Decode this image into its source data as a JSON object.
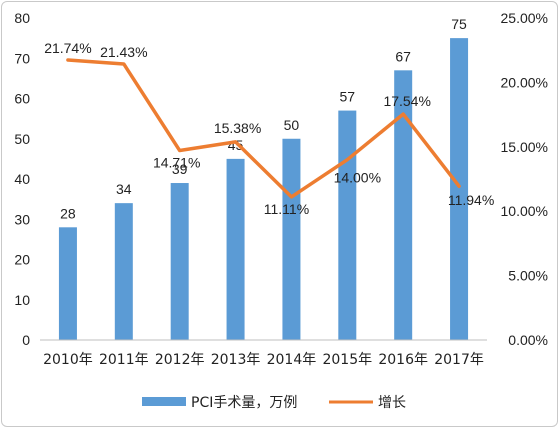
{
  "chart_data": {
    "type": "bar+line",
    "categories": [
      "2010年",
      "2011年",
      "2012年",
      "2013年",
      "2014年",
      "2015年",
      "2016年",
      "2017年"
    ],
    "series": [
      {
        "name": "PCI手术量，万例",
        "type": "bar",
        "axis": "left",
        "color": "#5b9bd5",
        "values": [
          28,
          34,
          39,
          45,
          50,
          57,
          67,
          75
        ],
        "labels": [
          "28",
          "34",
          "39",
          "45",
          "50",
          "57",
          "67",
          "75"
        ]
      },
      {
        "name": "增长",
        "type": "line",
        "axis": "right",
        "color": "#ed7d31",
        "values": [
          21.74,
          21.43,
          14.71,
          15.38,
          11.11,
          14.0,
          17.54,
          11.94
        ],
        "labels": [
          "21.74%",
          "21.43%",
          "14.71%",
          "15.38%",
          "11.11%",
          "14.00%",
          "17.54%",
          "11.94%"
        ]
      }
    ],
    "y_left": {
      "min": 0,
      "max": 80,
      "ticks": [
        "0",
        "10",
        "20",
        "30",
        "40",
        "50",
        "60",
        "70",
        "80"
      ]
    },
    "y_right": {
      "min": 0,
      "max": 25,
      "ticks": [
        "0.00%",
        "5.00%",
        "10.00%",
        "15.00%",
        "20.00%",
        "25.00%"
      ]
    },
    "grid": false,
    "legend_position": "bottom"
  }
}
